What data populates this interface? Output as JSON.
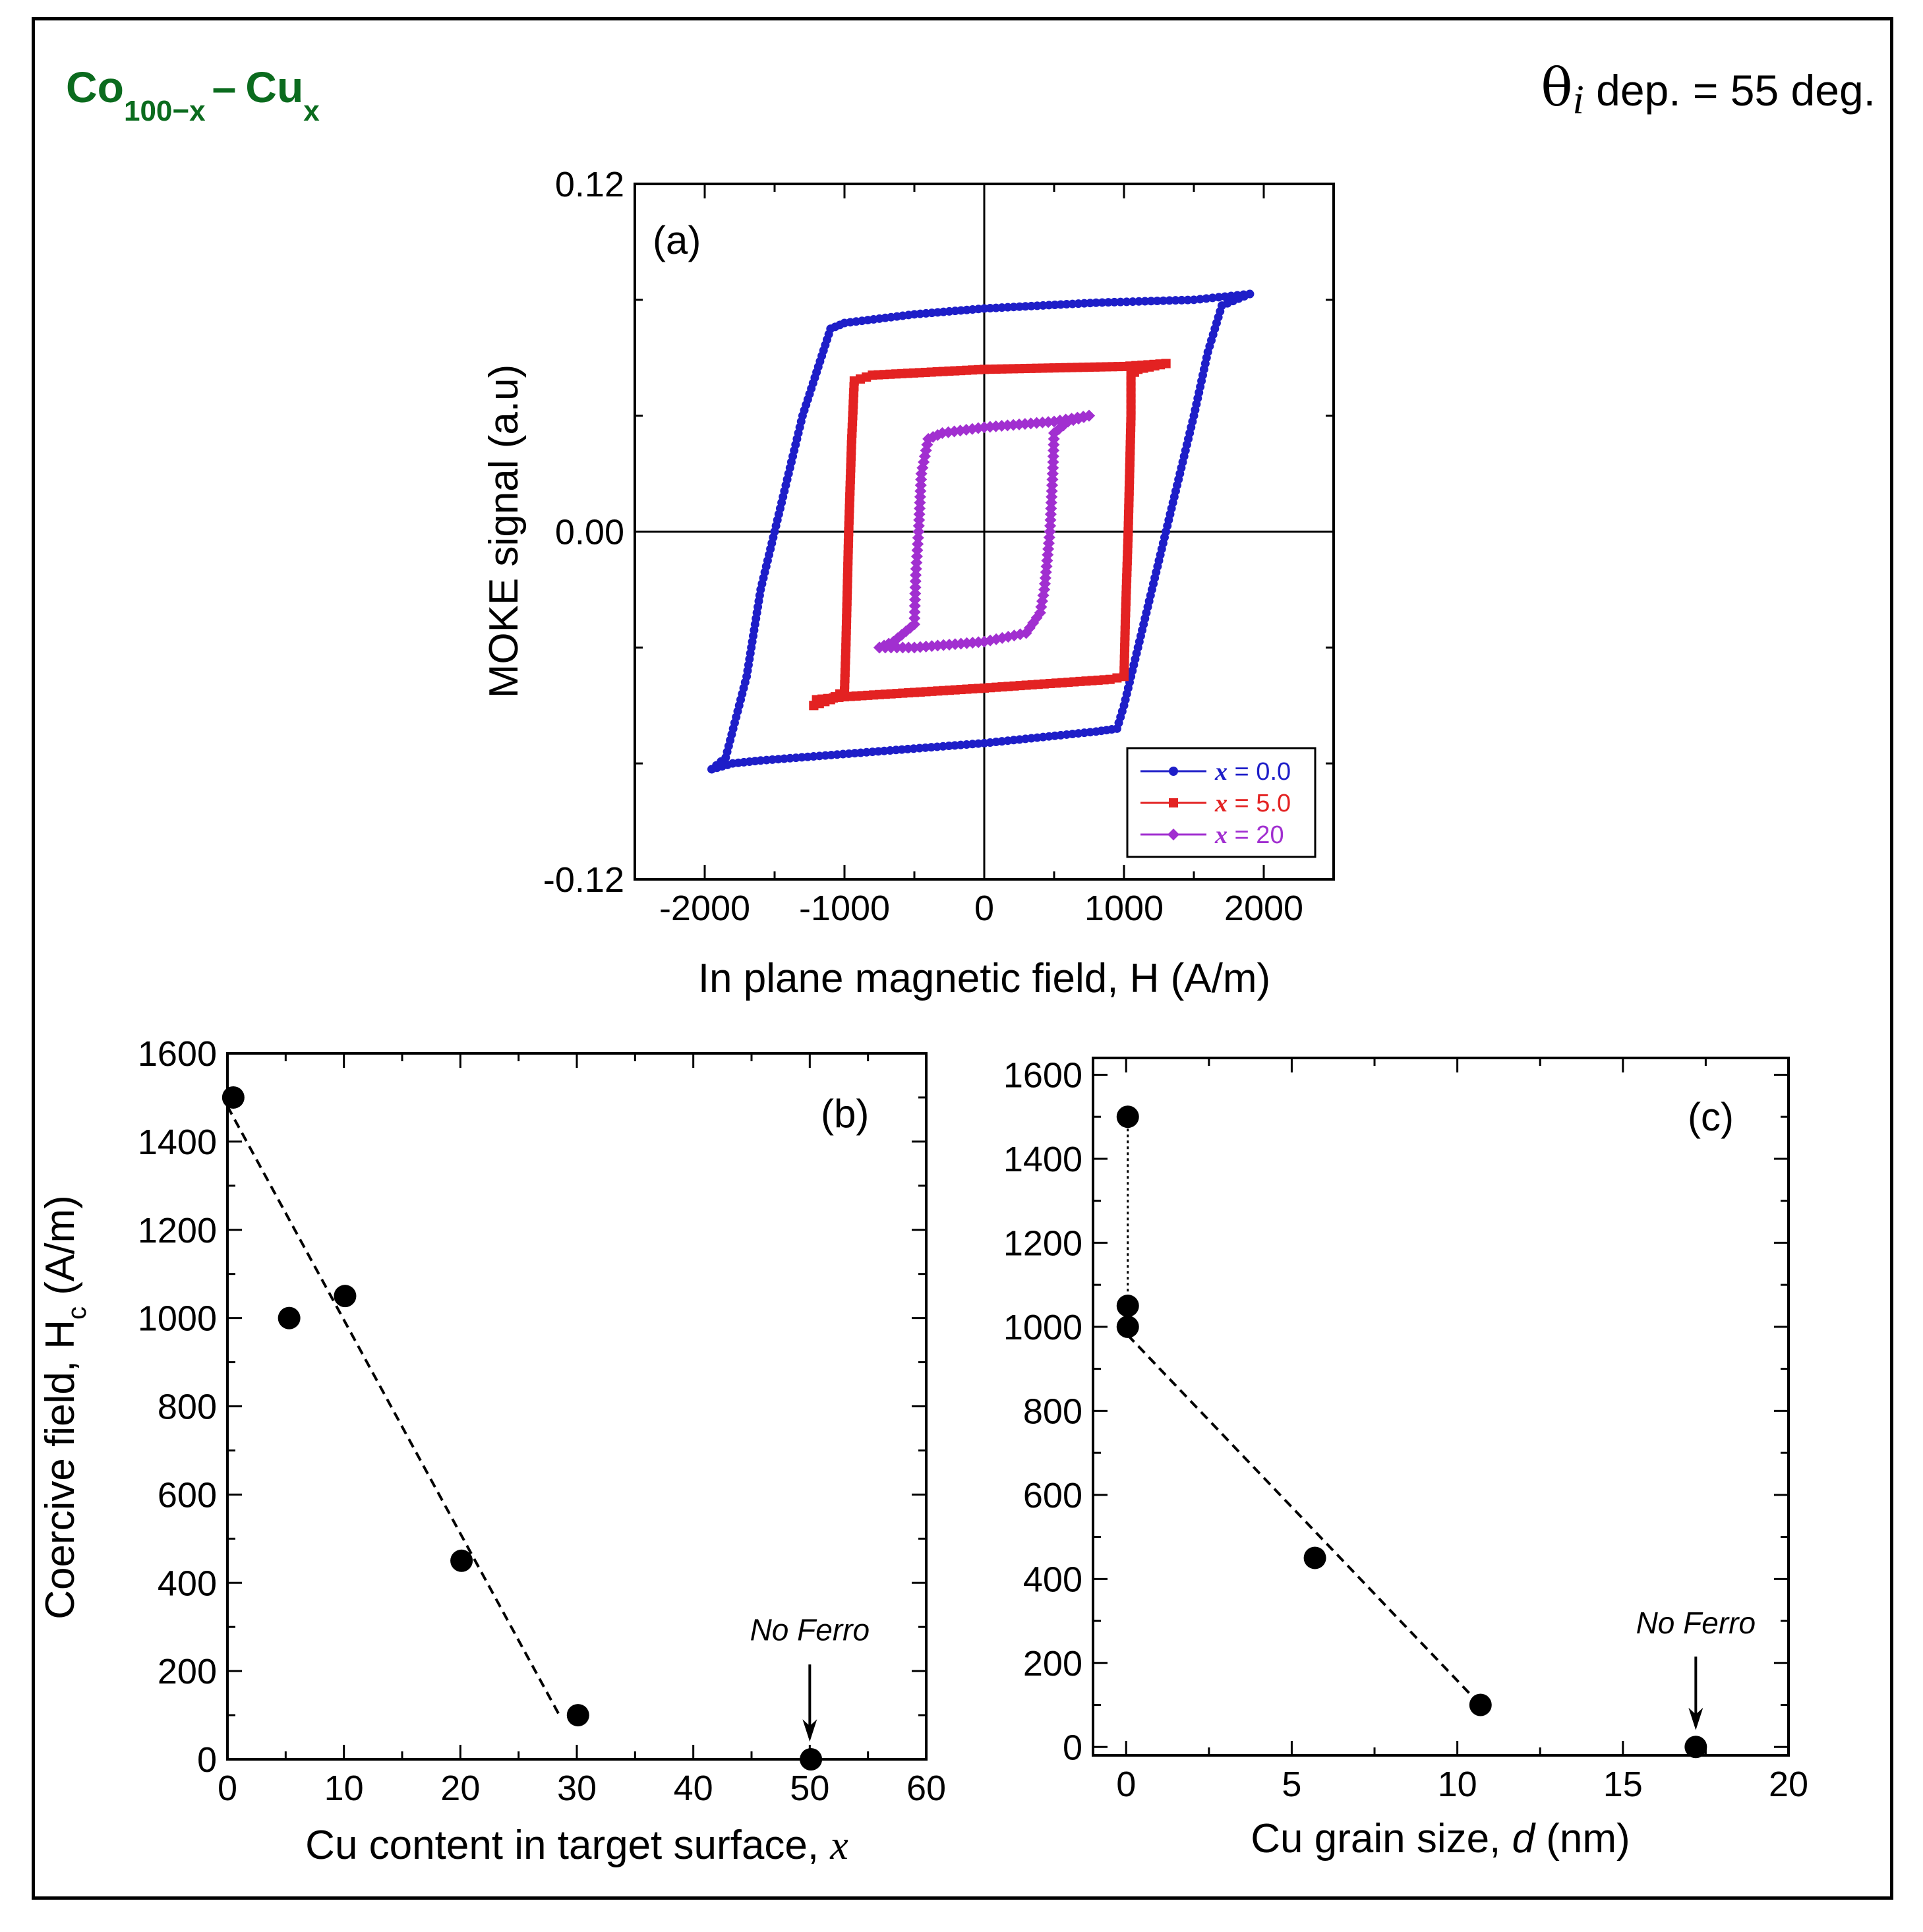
{
  "header": {
    "alloy_base": "Co",
    "alloy_base_sub": "100−x",
    "alloy_dash": "–",
    "alloy_add": "Cu",
    "alloy_add_sub": "x",
    "theta_symbol": "θ",
    "theta_sub": "i",
    "theta_text": " dep. = 55 deg.",
    "title_color": "#0b6b1e"
  },
  "chart_data": [
    {
      "id": "a",
      "type": "line",
      "panel_label": "(a)",
      "xlabel": "In plane magnetic field, H (A/m)",
      "ylabel": "MOKE signal (a.u)",
      "xlim": [
        -2500,
        2500
      ],
      "ylim": [
        -0.12,
        0.12
      ],
      "xticks": [
        -2000,
        -1000,
        0,
        1000,
        2000
      ],
      "xtick_labels": [
        "-2000",
        "-1000",
        "0",
        "1000",
        "2000"
      ],
      "yticks": [
        -0.12,
        0.0,
        0.12
      ],
      "ytick_labels": [
        "-0.12",
        "0.00",
        "0.12"
      ],
      "legend_position": "bottom-right",
      "series": [
        {
          "name": "x = 0.0",
          "legend_var": "x",
          "legend_value": " = 0.0",
          "color": "#1e1ec8",
          "marker": "circle",
          "upper_branch": [
            [
              1900,
              0.082
            ],
            [
              1700,
              0.078
            ],
            [
              1600,
              0.062
            ],
            [
              1500,
              0.04
            ],
            [
              1400,
              0.02
            ],
            [
              1300,
              0.0
            ],
            [
              1200,
              -0.02
            ],
            [
              1100,
              -0.04
            ],
            [
              1000,
              -0.06
            ],
            [
              950,
              -0.068
            ],
            [
              800,
              -0.069
            ],
            [
              0,
              -0.073
            ],
            [
              -800,
              -0.076
            ],
            [
              -1600,
              -0.079
            ],
            [
              -1800,
              -0.08
            ],
            [
              -1950,
              -0.082
            ]
          ],
          "lower_branch": [
            [
              -1950,
              -0.082
            ],
            [
              -1850,
              -0.078
            ],
            [
              -1700,
              -0.05
            ],
            [
              -1600,
              -0.02
            ],
            [
              -1500,
              0.0
            ],
            [
              -1400,
              0.02
            ],
            [
              -1300,
              0.04
            ],
            [
              -1200,
              0.055
            ],
            [
              -1100,
              0.07
            ],
            [
              -1000,
              0.072
            ],
            [
              -500,
              0.075
            ],
            [
              0,
              0.077
            ],
            [
              800,
              0.079
            ],
            [
              1500,
              0.08
            ],
            [
              1900,
              0.082
            ]
          ]
        },
        {
          "name": "x = 5.0",
          "legend_var": "x",
          "legend_value": " = 5.0",
          "color": "#e32222",
          "marker": "square",
          "upper_branch": [
            [
              1300,
              0.058
            ],
            [
              1100,
              0.056
            ],
            [
              1050,
              0.054
            ],
            [
              1050,
              0.04
            ],
            [
              1040,
              0.02
            ],
            [
              1030,
              0.0
            ],
            [
              1010,
              -0.03
            ],
            [
              1000,
              -0.05
            ],
            [
              900,
              -0.051
            ],
            [
              0,
              -0.054
            ],
            [
              -1000,
              -0.057
            ],
            [
              -1200,
              -0.058
            ],
            [
              -1220,
              -0.06
            ]
          ],
          "lower_branch": [
            [
              -1220,
              -0.06
            ],
            [
              -1100,
              -0.058
            ],
            [
              -1000,
              -0.055
            ],
            [
              -990,
              -0.04
            ],
            [
              -980,
              -0.02
            ],
            [
              -970,
              0.0
            ],
            [
              -950,
              0.03
            ],
            [
              -930,
              0.052
            ],
            [
              -800,
              0.054
            ],
            [
              0,
              0.056
            ],
            [
              1000,
              0.057
            ],
            [
              1300,
              0.058
            ]
          ]
        },
        {
          "name": "x = 20",
          "legend_var": "x",
          "legend_value": " = 20",
          "color": "#a12fd0",
          "marker": "diamond",
          "upper_branch": [
            [
              750,
              0.04
            ],
            [
              600,
              0.038
            ],
            [
              500,
              0.034
            ],
            [
              490,
              0.02
            ],
            [
              470,
              0.0
            ],
            [
              430,
              -0.02
            ],
            [
              400,
              -0.028
            ],
            [
              300,
              -0.035
            ],
            [
              0,
              -0.038
            ],
            [
              -500,
              -0.04
            ],
            [
              -750,
              -0.04
            ]
          ],
          "lower_branch": [
            [
              -750,
              -0.04
            ],
            [
              -650,
              -0.038
            ],
            [
              -500,
              -0.032
            ],
            [
              -490,
              -0.015
            ],
            [
              -470,
              0.0
            ],
            [
              -450,
              0.02
            ],
            [
              -400,
              0.032
            ],
            [
              -300,
              0.034
            ],
            [
              0,
              0.036
            ],
            [
              500,
              0.038
            ],
            [
              750,
              0.04
            ]
          ]
        }
      ]
    },
    {
      "id": "b",
      "type": "scatter",
      "panel_label": "(b)",
      "xlabel": "Cu content in target surface, ",
      "xlabel_var": "x",
      "ylabel": "Coercive field, H",
      "ylabel_sub": "c",
      "ylabel_unit": " (A/m)",
      "xlim": [
        0,
        60
      ],
      "ylim": [
        0,
        1600
      ],
      "xticks": [
        0,
        10,
        20,
        30,
        40,
        50,
        60
      ],
      "xtick_labels": [
        "0",
        "10",
        "20",
        "30",
        "40",
        "50",
        "60"
      ],
      "yticks": [
        0,
        200,
        400,
        600,
        800,
        1000,
        1200,
        1400,
        1600
      ],
      "ytick_labels": [
        "0",
        "200",
        "400",
        "600",
        "800",
        "1000",
        "1200",
        "1400",
        "1600"
      ],
      "points": [
        [
          0.5,
          1500
        ],
        [
          5.3,
          1000
        ],
        [
          10.1,
          1050
        ],
        [
          20.1,
          450
        ],
        [
          30.1,
          100
        ],
        [
          50.1,
          0
        ]
      ],
      "fit_line": [
        [
          0,
          1480
        ],
        [
          28.5,
          100
        ]
      ],
      "annotation": {
        "text": "No Ferro",
        "x": 50,
        "y_text": 270,
        "arrow_from": 215,
        "arrow_to": 40
      }
    },
    {
      "id": "c",
      "type": "scatter",
      "panel_label": "(c)",
      "xlabel": "Cu grain size, ",
      "xlabel_var": "d",
      "xlabel_unit": " (nm)",
      "xlim": [
        -1,
        20
      ],
      "ylim": [
        -20,
        1640
      ],
      "xticks": [
        0,
        5,
        10,
        15,
        20
      ],
      "xtick_labels": [
        "0",
        "5",
        "10",
        "15",
        "20"
      ],
      "yticks": [
        0,
        200,
        400,
        600,
        800,
        1000,
        1200,
        1400,
        1600
      ],
      "ytick_labels": [
        "0",
        "200",
        "400",
        "600",
        "800",
        "1000",
        "1200",
        "1400",
        "1600"
      ],
      "points": [
        [
          0.05,
          1500
        ],
        [
          0.05,
          1050
        ],
        [
          0.05,
          1000
        ],
        [
          5.7,
          450
        ],
        [
          10.7,
          100
        ],
        [
          17.2,
          0
        ]
      ],
      "dotted_line": [
        [
          0.05,
          1500
        ],
        [
          0.05,
          1050
        ]
      ],
      "fit_line": [
        [
          0.05,
          980
        ],
        [
          10.7,
          100
        ]
      ],
      "annotation": {
        "text": "No Ferro",
        "x": 17.2,
        "y_text": 270,
        "arrow_from": 215,
        "arrow_to": 40
      }
    }
  ]
}
